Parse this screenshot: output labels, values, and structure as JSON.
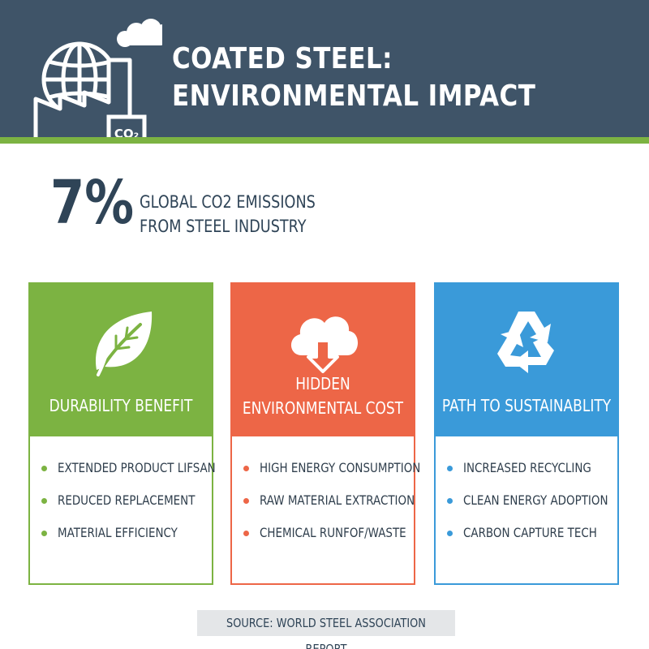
{
  "header": {
    "title": "COATED STEEL: ENVIRONMENTAL IMPACT",
    "icon_label": "CO₂"
  },
  "stat": {
    "value": "7%",
    "label": "GLOBAL CO2 EMISSIONS FROM STEEL INDUSTRY"
  },
  "cards": [
    {
      "title": "DURABILITY BENEFIT",
      "icon": "leaf-icon",
      "color": "#7cb342",
      "items": [
        "EXTENDED PRODUCT LIFSAN",
        "REDUCED REPLACEMENT",
        "MATERIAL EFFICIENCY"
      ]
    },
    {
      "title": "HIDDEN ENVIRONMENTAL COST",
      "icon": "cloud-download-icon",
      "color": "#ed6647",
      "items": [
        "HIGH ENERGY CONSUMPTION",
        "RAW MATERIAL EXTRACTION",
        "CHEMICAL RUNFOF/WASTE"
      ]
    },
    {
      "title": "PATH TO SUSTAINABLITY",
      "icon": "recycle-icon",
      "color": "#3a9ad9",
      "items": [
        "INCREASED RECYCLING",
        "CLEAN ENERGY ADOPTION",
        "CARBON CAPTURE TECH"
      ]
    }
  ],
  "footer": {
    "source": "SOURCE: WORLD STEEL ASSOCIATION REPORT"
  }
}
